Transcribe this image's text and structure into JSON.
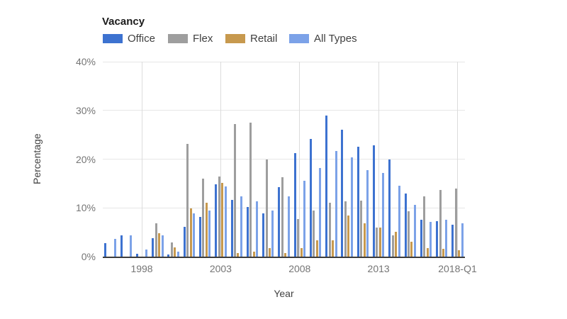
{
  "title": "Vacancy",
  "legend": {
    "items": [
      {
        "label": "Office",
        "color": "#3D72D0"
      },
      {
        "label": "Flex",
        "color": "#9E9E9E"
      },
      {
        "label": "Retail",
        "color": "#C7994E"
      },
      {
        "label": "All Types",
        "color": "#7CA2E8"
      }
    ]
  },
  "axes": {
    "y_title": "Percentage",
    "x_title": "Year",
    "y_ticks": [
      "40%",
      "30%",
      "20%",
      "10%",
      "0%"
    ],
    "x_ticks": [
      "1998",
      "2003",
      "2008",
      "2013",
      "2018-Q1"
    ]
  },
  "chart_data": {
    "type": "bar",
    "title": "Vacancy",
    "xlabel": "Year",
    "ylabel": "Percentage",
    "ylim": [
      0,
      40
    ],
    "grid": true,
    "legend_position": "top",
    "categories": [
      "1996",
      "1997",
      "1998",
      "1999",
      "2000",
      "2001",
      "2002",
      "2003",
      "2004",
      "2005",
      "2006",
      "2007",
      "2008",
      "2009",
      "2010",
      "2011",
      "2012",
      "2013",
      "2014",
      "2015",
      "2016",
      "2017",
      "2018-Q1"
    ],
    "x_tick_labels": [
      "1998",
      "2003",
      "2008",
      "2013",
      "2018-Q1"
    ],
    "series": [
      {
        "name": "Office",
        "color": "#3D72D0",
        "values": [
          2.8,
          4.4,
          0.6,
          3.8,
          0.5,
          6.1,
          8.1,
          14.8,
          11.7,
          10.2,
          8.9,
          14.2,
          21.2,
          24.2,
          29.0,
          26.1,
          22.5,
          22.9,
          19.9,
          13.0,
          7.6,
          7.3,
          6.6
        ]
      },
      {
        "name": "Flex",
        "color": "#9E9E9E",
        "values": [
          null,
          null,
          null,
          6.8,
          2.9,
          23.2,
          16.0,
          16.4,
          27.2,
          27.5,
          20.0,
          16.3,
          7.7,
          9.5,
          11.0,
          11.4,
          11.5,
          5.9,
          4.3,
          9.3,
          12.3,
          13.7,
          13.9
        ]
      },
      {
        "name": "Retail",
        "color": "#C7994E",
        "values": [
          null,
          null,
          null,
          4.8,
          1.9,
          9.9,
          11.0,
          15.2,
          0.8,
          1.0,
          1.7,
          0.8,
          1.7,
          3.3,
          3.4,
          8.4,
          6.9,
          5.9,
          5.1,
          3.1,
          1.8,
          1.6,
          1.3
        ]
      },
      {
        "name": "All Types",
        "color": "#7CA2E8",
        "values": [
          3.7,
          4.4,
          1.4,
          4.3,
          1.0,
          8.9,
          9.4,
          14.4,
          12.3,
          11.3,
          9.5,
          12.3,
          15.6,
          18.2,
          21.7,
          20.3,
          17.8,
          17.1,
          14.6,
          10.6,
          7.2,
          7.5,
          6.9
        ]
      }
    ]
  }
}
